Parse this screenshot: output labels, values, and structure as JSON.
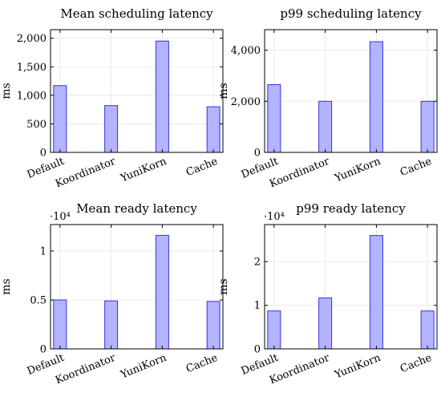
{
  "colors": {
    "bar_fill": "#b3b3ff",
    "bar_stroke": "#3333e6",
    "grid": "#e6e6e6",
    "axis": "#000000"
  },
  "chart_data": [
    {
      "type": "bar",
      "title": "Mean scheduling latency",
      "ylabel": "ms",
      "categories": [
        "Default",
        "Koordinator",
        "YuniKorn",
        "Cache"
      ],
      "values": [
        1170,
        820,
        1950,
        800
      ],
      "ylim": [
        0,
        2150
      ],
      "yticks": [
        0,
        500,
        1000,
        1500,
        2000
      ],
      "ytick_labels": [
        "0",
        "500",
        "1,000",
        "1,500",
        "2,000"
      ],
      "scale_label": "",
      "grid": true
    },
    {
      "type": "bar",
      "title": "p99 scheduling latency",
      "ylabel": "ms",
      "categories": [
        "Default",
        "Koordinator",
        "YuniKorn",
        "Cache"
      ],
      "values": [
        2650,
        2000,
        4330,
        2000
      ],
      "ylim": [
        0,
        4800
      ],
      "yticks": [
        0,
        2000,
        4000
      ],
      "ytick_labels": [
        "0",
        "2,000",
        "4,000"
      ],
      "scale_label": "",
      "grid": true
    },
    {
      "type": "bar",
      "title": "Mean ready latency",
      "ylabel": "ms",
      "categories": [
        "Default",
        "Koordinator",
        "YuniKorn",
        "Cache"
      ],
      "values": [
        0.5,
        0.49,
        1.16,
        0.485
      ],
      "ylim": [
        0,
        1.27
      ],
      "yticks": [
        0,
        0.5,
        1
      ],
      "ytick_labels": [
        "0",
        "0.5",
        "1"
      ],
      "scale_label": "·10⁴",
      "grid": true
    },
    {
      "type": "bar",
      "title": "p99 ready latency",
      "ylabel": "ms",
      "categories": [
        "Default",
        "Koordinator",
        "YuniKorn",
        "Cache"
      ],
      "values": [
        0.87,
        1.17,
        2.6,
        0.87
      ],
      "ylim": [
        0,
        2.85
      ],
      "yticks": [
        0,
        1,
        2
      ],
      "ytick_labels": [
        "0",
        "1",
        "2"
      ],
      "scale_label": "·10⁴",
      "grid": true
    }
  ]
}
